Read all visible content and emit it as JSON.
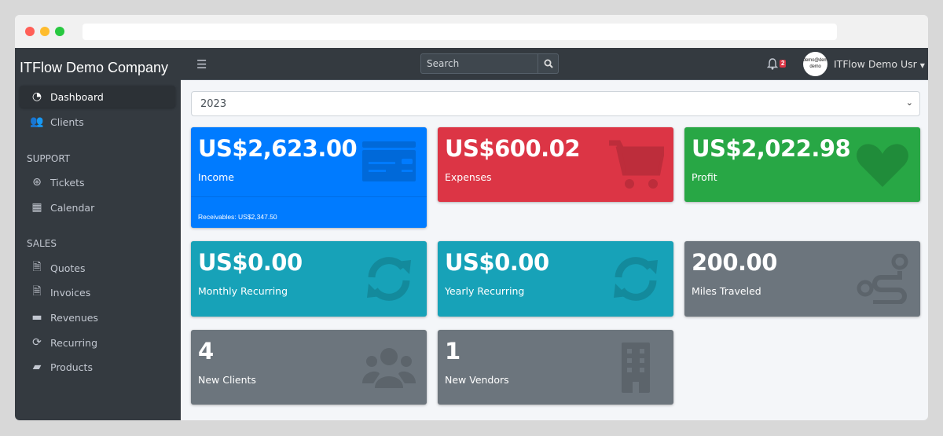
{
  "sidebar": {
    "brand": "ITFlow Demo Company",
    "items": [
      {
        "label": "Dashboard",
        "icon": "tachometer-icon",
        "active": true
      },
      {
        "label": "Clients",
        "icon": "users-icon"
      }
    ],
    "sections": [
      {
        "header": "SUPPORT",
        "items": [
          {
            "label": "Tickets",
            "icon": "life-ring-icon"
          },
          {
            "label": "Calendar",
            "icon": "calendar-icon"
          }
        ]
      },
      {
        "header": "SALES",
        "items": [
          {
            "label": "Quotes",
            "icon": "file-icon"
          },
          {
            "label": "Invoices",
            "icon": "file-invoice-dollar-icon"
          },
          {
            "label": "Revenues",
            "icon": "credit-card-icon"
          },
          {
            "label": "Recurring",
            "icon": "sync-icon"
          },
          {
            "label": "Products",
            "icon": "box-icon"
          }
        ]
      }
    ]
  },
  "topbar": {
    "search_placeholder": "Search",
    "notification_count": "2",
    "avatar_text": "demo@demo demo",
    "user_name": "ITFlow Demo Usr"
  },
  "year_select": {
    "selected": "2023"
  },
  "cards": [
    {
      "value": "US$2,623.00",
      "label": "Income",
      "footer": "Receivables: US$2,347.50",
      "color": "#007bff",
      "icon": "credit-card-icon"
    },
    {
      "value": "US$600.02",
      "label": "Expenses",
      "color": "#dc3545",
      "icon": "shopping-cart-icon"
    },
    {
      "value": "US$2,022.98",
      "label": "Profit",
      "color": "#28a745",
      "icon": "heart-icon"
    },
    {
      "value": "US$0.00",
      "label": "Monthly Recurring",
      "color": "#17a2b8",
      "icon": "sync-icon"
    },
    {
      "value": "US$0.00",
      "label": "Yearly Recurring",
      "color": "#17a2b8",
      "icon": "sync-icon"
    },
    {
      "value": "200.00",
      "label": "Miles Traveled",
      "color": "#6c757d",
      "icon": "route-icon"
    },
    {
      "value": "4",
      "label": "New Clients",
      "color": "#6c757d",
      "icon": "users-icon"
    },
    {
      "value": "1",
      "label": "New Vendors",
      "color": "#6c757d",
      "icon": "building-icon"
    }
  ]
}
